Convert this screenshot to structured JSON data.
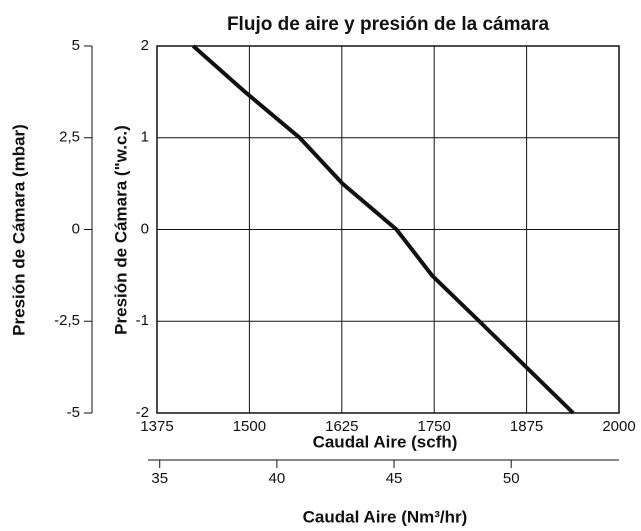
{
  "chart_data": {
    "type": "line",
    "title": "Flujo de aire y presión de la cámara",
    "x_label": "Caudal Aire (scfh)",
    "y_label": "Presión de Cámara (\"w.c.)",
    "x2_label": "Caudal Aire (Nm³/hr)",
    "y2_label": "Presión de Cámara (mbar)",
    "x": [
      1424,
      1494,
      1568,
      1626,
      1699,
      1747,
      1811,
      1938
    ],
    "values": [
      2,
      1.5,
      1,
      0.5,
      0,
      -0.5,
      -1,
      -2
    ],
    "color": "#111111",
    "xlim": [
      1375,
      2000
    ],
    "xticks": [
      1375,
      1500,
      1625,
      1750,
      1875,
      2000
    ],
    "ylim": [
      -2,
      2
    ],
    "yticks": [
      -2,
      -1,
      0,
      1,
      2
    ],
    "x2lim": [
      34.5,
      54.6
    ],
    "x2ticks": [
      35,
      40,
      45,
      50
    ],
    "y2lim": [
      -5,
      5
    ],
    "y2ticks": [
      {
        "value": -5,
        "label": "-5"
      },
      {
        "value": -2.5,
        "label": "-2,5"
      },
      0,
      {
        "value": 2.5,
        "label": "2,5"
      },
      5
    ],
    "grid": true
  }
}
